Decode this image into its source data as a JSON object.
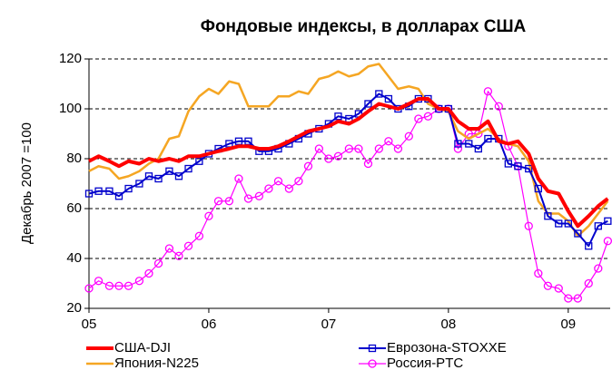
{
  "chart_data": {
    "type": "line",
    "title": "Фондовые индексы, в долларах США",
    "y_label": "Декабрь 2007 =100",
    "x": [
      2005,
      2005.08,
      2005.17,
      2005.25,
      2005.33,
      2005.42,
      2005.5,
      2005.58,
      2005.67,
      2005.75,
      2005.83,
      2005.92,
      2006,
      2006.08,
      2006.17,
      2006.25,
      2006.33,
      2006.42,
      2006.5,
      2006.58,
      2006.67,
      2006.75,
      2006.83,
      2006.92,
      2007,
      2007.08,
      2007.17,
      2007.25,
      2007.33,
      2007.42,
      2007.5,
      2007.58,
      2007.67,
      2007.75,
      2007.83,
      2007.92,
      2008,
      2008.08,
      2008.17,
      2008.25,
      2008.33,
      2008.42,
      2008.5,
      2008.58,
      2008.67,
      2008.75,
      2008.83,
      2008.92,
      2009,
      2009.08,
      2009.17,
      2009.25,
      2009.33
    ],
    "xlim": [
      2005,
      2009.35
    ],
    "xticks": [
      {
        "value": 2005,
        "label": "05"
      },
      {
        "value": 2006,
        "label": "06"
      },
      {
        "value": 2007,
        "label": "07"
      },
      {
        "value": 2008,
        "label": "08"
      },
      {
        "value": 2009,
        "label": "09"
      }
    ],
    "ylim": [
      20,
      120
    ],
    "yticks": [
      20,
      40,
      60,
      80,
      100,
      120
    ],
    "grid": true,
    "legend": "bottom",
    "series": [
      {
        "name": "США-DJI",
        "color": "#ff0000",
        "marker": null,
        "values": [
          79,
          81,
          79,
          77,
          79,
          78,
          80,
          79,
          80,
          79,
          81,
          81,
          82,
          83,
          84,
          85,
          85,
          84,
          84,
          85,
          87,
          89,
          91,
          92,
          93,
          95,
          94,
          96,
          99,
          102,
          101,
          100,
          102,
          104,
          104,
          100,
          100,
          95,
          92,
          92,
          95,
          87,
          86,
          87,
          82,
          72,
          67,
          66,
          59,
          53,
          57,
          61,
          64
        ]
      },
      {
        "name": "Еврозона-STOXXE",
        "color": "#0000cc",
        "marker": "square",
        "values": [
          66,
          67,
          67,
          65,
          68,
          70,
          73,
          72,
          75,
          73,
          76,
          79,
          82,
          84,
          86,
          87,
          87,
          83,
          83,
          84,
          86,
          88,
          90,
          92,
          94,
          97,
          96,
          98,
          102,
          106,
          104,
          100,
          101,
          104,
          104,
          100,
          100,
          86,
          86,
          84,
          88,
          88,
          78,
          77,
          76,
          68,
          57,
          54,
          54,
          50,
          45,
          53,
          55
        ]
      },
      {
        "name": "Япония-N225",
        "color": "#f5a623",
        "marker": null,
        "values": [
          75,
          77,
          76,
          72,
          73,
          75,
          78,
          80,
          88,
          89,
          99,
          105,
          108,
          106,
          111,
          110,
          101,
          101,
          101,
          105,
          105,
          107,
          106,
          112,
          113,
          115,
          113,
          114,
          117,
          118,
          113,
          108,
          109,
          108,
          102,
          100,
          99,
          91,
          88,
          90,
          92,
          88,
          86,
          85,
          79,
          63,
          58,
          58,
          55,
          49,
          53,
          58,
          63
        ]
      },
      {
        "name": "Россия-PTC",
        "color": "#ff00ff",
        "marker": "circle",
        "values": [
          28,
          31,
          29,
          29,
          29,
          31,
          34,
          38,
          44,
          41,
          45,
          49,
          57,
          63,
          63,
          72,
          64,
          65,
          68,
          71,
          68,
          71,
          77,
          84,
          80,
          81,
          84,
          84,
          78,
          84,
          87,
          84,
          89,
          96,
          97,
          100,
          100,
          84,
          90,
          90,
          107,
          101,
          85,
          77,
          53,
          34,
          29,
          28,
          24,
          24,
          30,
          36,
          47
        ]
      }
    ]
  }
}
